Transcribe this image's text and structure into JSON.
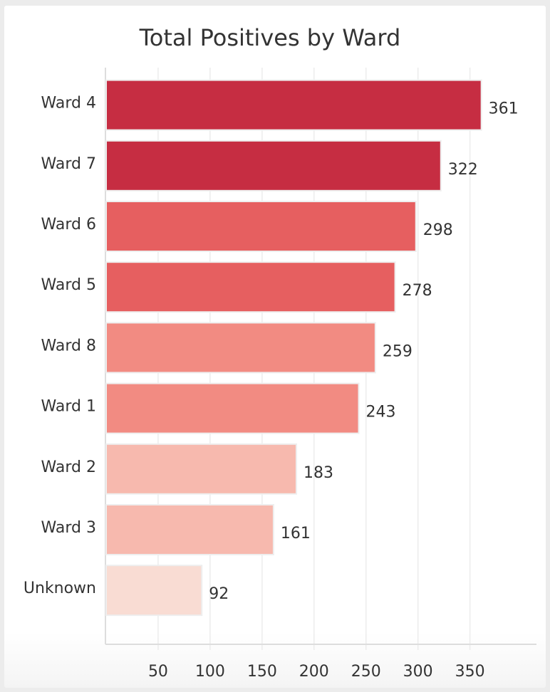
{
  "chart_data": {
    "type": "bar",
    "orientation": "horizontal",
    "title": "Total Positives by Ward",
    "categories": [
      "Ward 4",
      "Ward 7",
      "Ward 6",
      "Ward 5",
      "Ward 8",
      "Ward 1",
      "Ward 2",
      "Ward 3",
      "Unknown"
    ],
    "values": [
      361,
      322,
      298,
      278,
      259,
      243,
      183,
      161,
      92
    ],
    "colors": [
      "#c62d42",
      "#c62d42",
      "#e65f60",
      "#e65f60",
      "#f28b82",
      "#f28b82",
      "#f7b9ae",
      "#f7b9ae",
      "#f9dcd3"
    ],
    "xticks": [
      50,
      100,
      150,
      200,
      250,
      300,
      350
    ],
    "xlim": [
      0,
      414
    ],
    "grid": true,
    "data_labels": true,
    "legend": "none"
  }
}
